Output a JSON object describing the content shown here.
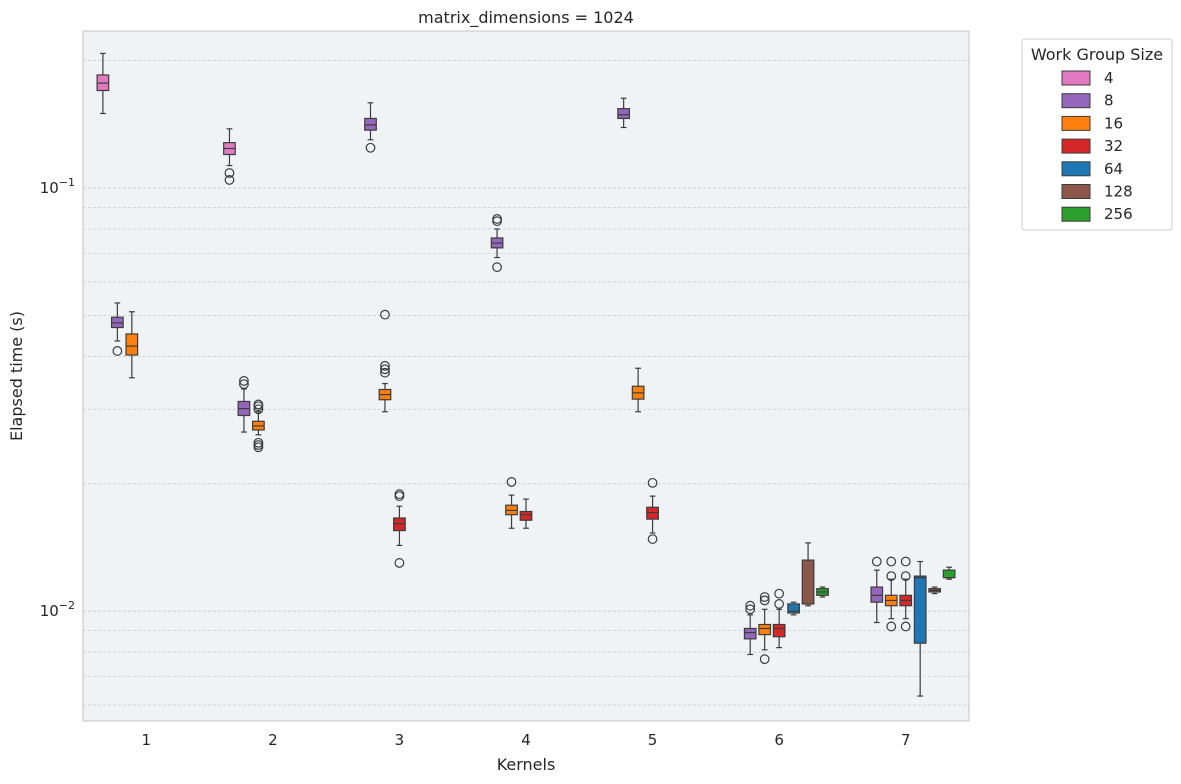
{
  "chart_data": {
    "type": "boxplot",
    "title": "matrix_dimensions = 1024",
    "xlabel": "Kernels",
    "ylabel": "Elapsed time (s)",
    "yscale": "log",
    "ylim": [
      0.0055,
      0.235
    ],
    "yticks": [
      {
        "value": 0.1,
        "base": "10",
        "exp": "−1"
      },
      {
        "value": 0.01,
        "base": "10",
        "exp": "−2"
      }
    ],
    "grid": "horizontal-dashed",
    "categories": [
      "1",
      "2",
      "3",
      "4",
      "5",
      "6",
      "7"
    ],
    "legend": {
      "title": "Work Group Size",
      "placement": "outside-right",
      "entries": [
        {
          "label": "4",
          "color": "#e17ac1"
        },
        {
          "label": "8",
          "color": "#9467bd"
        },
        {
          "label": "16",
          "color": "#ff7f0e"
        },
        {
          "label": "32",
          "color": "#d62728"
        },
        {
          "label": "64",
          "color": "#1f77b4"
        },
        {
          "label": "128",
          "color": "#8c564b"
        },
        {
          "label": "256",
          "color": "#2ca02c"
        }
      ]
    },
    "boxes": [
      {
        "kernel": "1",
        "group": "4",
        "whisker_low": 0.15,
        "q1": 0.17,
        "median": 0.177,
        "q3": 0.185,
        "whisker_high": 0.208,
        "outliers": []
      },
      {
        "kernel": "1",
        "group": "8",
        "whisker_low": 0.0435,
        "q1": 0.0468,
        "median": 0.048,
        "q3": 0.0495,
        "whisker_high": 0.0535,
        "outliers": [
          0.0412
        ]
      },
      {
        "kernel": "1",
        "group": "16",
        "whisker_low": 0.0356,
        "q1": 0.0403,
        "median": 0.0423,
        "q3": 0.0452,
        "whisker_high": 0.051,
        "outliers": []
      },
      {
        "kernel": "2",
        "group": "4",
        "whisker_low": 0.113,
        "q1": 0.12,
        "median": 0.124,
        "q3": 0.128,
        "whisker_high": 0.138,
        "outliers": [
          0.1045,
          0.1085
        ]
      },
      {
        "kernel": "2",
        "group": "8",
        "whisker_low": 0.0265,
        "q1": 0.029,
        "median": 0.0301,
        "q3": 0.0313,
        "whisker_high": 0.0335,
        "outliers": [
          0.0344,
          0.035
        ]
      },
      {
        "kernel": "2",
        "group": "16",
        "whisker_low": 0.0261,
        "q1": 0.0268,
        "median": 0.0274,
        "q3": 0.0281,
        "whisker_high": 0.0296,
        "outliers": [
          0.0244,
          0.0247,
          0.025,
          0.03,
          0.0305,
          0.0308
        ]
      },
      {
        "kernel": "3",
        "group": "8",
        "whisker_low": 0.13,
        "q1": 0.137,
        "median": 0.141,
        "q3": 0.146,
        "whisker_high": 0.159,
        "outliers": [
          0.1245
        ]
      },
      {
        "kernel": "3",
        "group": "16",
        "whisker_low": 0.0296,
        "q1": 0.0316,
        "median": 0.0325,
        "q3": 0.0334,
        "whisker_high": 0.0345,
        "outliers": [
          0.0366,
          0.0373,
          0.038,
          0.0502
        ]
      },
      {
        "kernel": "3",
        "group": "32",
        "whisker_low": 0.0143,
        "q1": 0.0155,
        "median": 0.0161,
        "q3": 0.0166,
        "whisker_high": 0.0177,
        "outliers": [
          0.013,
          0.0187,
          0.0189
        ]
      },
      {
        "kernel": "4",
        "group": "8",
        "whisker_low": 0.0685,
        "q1": 0.0722,
        "median": 0.0741,
        "q3": 0.0762,
        "whisker_high": 0.08,
        "outliers": [
          0.065,
          0.0835,
          0.0845
        ]
      },
      {
        "kernel": "4",
        "group": "16",
        "whisker_low": 0.0157,
        "q1": 0.0169,
        "median": 0.0173,
        "q3": 0.0178,
        "whisker_high": 0.0188,
        "outliers": [
          0.0202
        ]
      },
      {
        "kernel": "4",
        "group": "32",
        "whisker_low": 0.0157,
        "q1": 0.0164,
        "median": 0.0169,
        "q3": 0.0172,
        "whisker_high": 0.0184,
        "outliers": []
      },
      {
        "kernel": "5",
        "group": "8",
        "whisker_low": 0.139,
        "q1": 0.146,
        "median": 0.149,
        "q3": 0.154,
        "whisker_high": 0.163,
        "outliers": []
      },
      {
        "kernel": "5",
        "group": "16",
        "whisker_low": 0.0296,
        "q1": 0.0317,
        "median": 0.0328,
        "q3": 0.034,
        "whisker_high": 0.0375,
        "outliers": []
      },
      {
        "kernel": "5",
        "group": "32",
        "whisker_low": 0.0153,
        "q1": 0.0165,
        "median": 0.0171,
        "q3": 0.0176,
        "whisker_high": 0.0187,
        "outliers": [
          0.0148,
          0.0201
        ]
      },
      {
        "kernel": "6",
        "group": "8",
        "whisker_low": 0.0079,
        "q1": 0.0086,
        "median": 0.0089,
        "q3": 0.0091,
        "whisker_high": 0.0098,
        "outliers": [
          0.0101,
          0.0103
        ]
      },
      {
        "kernel": "6",
        "group": "16",
        "whisker_low": 0.0081,
        "q1": 0.0088,
        "median": 0.0091,
        "q3": 0.0093,
        "whisker_high": 0.0101,
        "outliers": [
          0.0077,
          0.0106,
          0.0108
        ]
      },
      {
        "kernel": "6",
        "group": "32",
        "whisker_low": 0.0082,
        "q1": 0.0087,
        "median": 0.0091,
        "q3": 0.0093,
        "whisker_high": 0.0101,
        "outliers": [
          0.0104,
          0.011
        ]
      },
      {
        "kernel": "6",
        "group": "64",
        "whisker_low": 0.0098,
        "q1": 0.0099,
        "median": 0.01,
        "q3": 0.0104,
        "whisker_high": 0.0105,
        "outliers": []
      },
      {
        "kernel": "6",
        "group": "128",
        "whisker_low": 0.0103,
        "q1": 0.0104,
        "median": 0.0104,
        "q3": 0.0132,
        "whisker_high": 0.0145,
        "outliers": []
      },
      {
        "kernel": "6",
        "group": "256",
        "whisker_low": 0.0108,
        "q1": 0.0109,
        "median": 0.0111,
        "q3": 0.0113,
        "whisker_high": 0.0114,
        "outliers": []
      },
      {
        "kernel": "7",
        "group": "8",
        "whisker_low": 0.0094,
        "q1": 0.0105,
        "median": 0.0109,
        "q3": 0.0114,
        "whisker_high": 0.0125,
        "outliers": [
          0.0131
        ]
      },
      {
        "kernel": "7",
        "group": "16",
        "whisker_low": 0.0096,
        "q1": 0.0103,
        "median": 0.0106,
        "q3": 0.0109,
        "whisker_high": 0.0119,
        "outliers": [
          0.0092,
          0.0121,
          0.0131
        ]
      },
      {
        "kernel": "7",
        "group": "32",
        "whisker_low": 0.0096,
        "q1": 0.0103,
        "median": 0.0106,
        "q3": 0.0109,
        "whisker_high": 0.0119,
        "outliers": [
          0.0092,
          0.0121,
          0.0131
        ]
      },
      {
        "kernel": "7",
        "group": "64",
        "whisker_low": 0.0063,
        "q1": 0.0084,
        "median": 0.012,
        "q3": 0.0121,
        "whisker_high": 0.0131,
        "outliers": []
      },
      {
        "kernel": "7",
        "group": "128",
        "whisker_low": 0.011,
        "q1": 0.0111,
        "median": 0.0112,
        "q3": 0.0113,
        "whisker_high": 0.0114,
        "outliers": []
      },
      {
        "kernel": "7",
        "group": "256",
        "whisker_low": 0.0119,
        "q1": 0.012,
        "median": 0.012,
        "q3": 0.0125,
        "whisker_high": 0.0127,
        "outliers": []
      }
    ]
  }
}
